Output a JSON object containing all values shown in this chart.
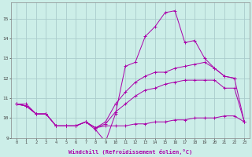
{
  "background_color": "#cceee8",
  "grid_color": "#aacccc",
  "line_color": "#aa00aa",
  "xlabel": "Windchill (Refroidissement éolien,°C)",
  "ylabel_ticks": [
    9,
    10,
    11,
    12,
    13,
    14,
    15
  ],
  "xlim": [
    -0.5,
    23.5
  ],
  "ylim": [
    9.0,
    15.8
  ],
  "lines": [
    {
      "x": [
        0,
        1,
        2,
        3,
        4,
        5,
        6,
        7,
        8,
        9,
        10,
        11,
        12,
        13,
        14,
        15,
        16,
        17,
        18,
        19,
        20,
        21,
        22
      ],
      "y": [
        10.7,
        10.7,
        10.2,
        10.2,
        9.6,
        9.6,
        9.6,
        9.8,
        9.4,
        8.8,
        10.2,
        12.6,
        12.8,
        14.1,
        14.6,
        15.3,
        15.4,
        13.8,
        13.9,
        13.0,
        12.5,
        12.1,
        12.0
      ]
    },
    {
      "x": [
        0,
        1,
        2,
        3,
        4,
        5,
        6,
        7,
        8,
        9,
        10,
        11,
        12,
        13,
        14,
        15,
        16,
        17,
        18,
        19,
        20,
        21,
        22,
        23
      ],
      "y": [
        10.7,
        10.6,
        10.2,
        10.2,
        9.6,
        9.6,
        9.6,
        9.8,
        9.5,
        9.6,
        9.6,
        9.6,
        9.7,
        9.7,
        9.8,
        9.8,
        9.9,
        9.9,
        10.0,
        10.0,
        10.0,
        10.1,
        10.1,
        9.8
      ]
    },
    {
      "x": [
        0,
        1,
        2,
        3,
        4,
        5,
        6,
        7,
        8,
        9,
        10,
        11,
        12,
        13,
        14,
        15,
        16,
        17,
        18,
        19,
        20,
        21,
        22,
        23
      ],
      "y": [
        10.7,
        10.6,
        10.2,
        10.2,
        9.6,
        9.6,
        9.6,
        9.8,
        9.5,
        9.7,
        10.3,
        10.7,
        11.1,
        11.4,
        11.5,
        11.7,
        11.8,
        11.9,
        11.9,
        11.9,
        11.9,
        11.5,
        11.5,
        9.8
      ]
    },
    {
      "x": [
        0,
        1,
        2,
        3,
        4,
        5,
        6,
        7,
        8,
        9,
        10,
        11,
        12,
        13,
        14,
        15,
        16,
        17,
        18,
        19,
        20,
        21,
        22,
        23
      ],
      "y": [
        10.7,
        10.6,
        10.2,
        10.2,
        9.6,
        9.6,
        9.6,
        9.8,
        9.5,
        9.8,
        10.7,
        11.3,
        11.8,
        12.1,
        12.3,
        12.3,
        12.5,
        12.6,
        12.7,
        12.8,
        12.5,
        12.1,
        12.0,
        9.8
      ]
    }
  ]
}
